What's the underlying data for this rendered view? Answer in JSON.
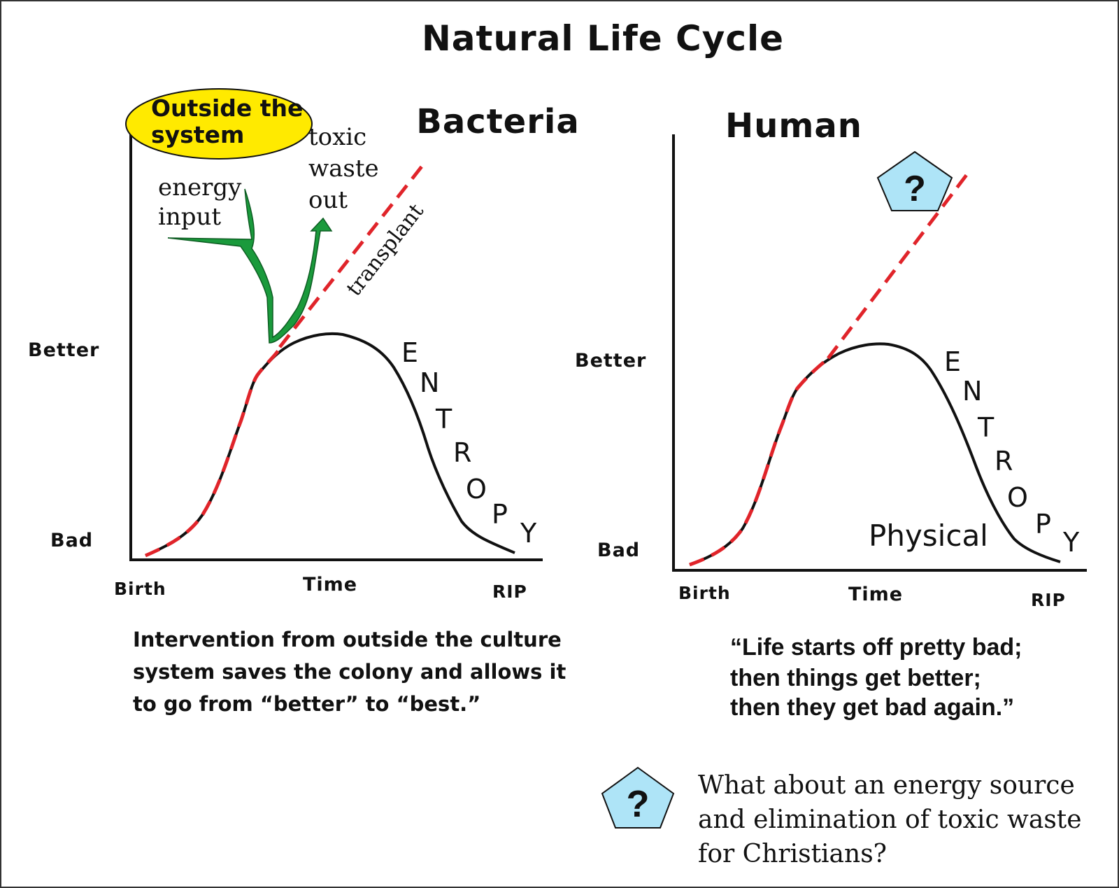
{
  "main_title": "Natural Life Cycle",
  "bacteria": {
    "title": "Bacteria",
    "y_better": "Better",
    "y_bad": "Bad",
    "x_birth": "Birth",
    "x_time": "Time",
    "x_rip": "RIP",
    "callout_line1": "Outside the",
    "callout_line2": "system",
    "energy_line1": "energy",
    "energy_line2": "input",
    "toxic_line1": "toxic",
    "toxic_line2": "waste",
    "toxic_line3": "out",
    "transplant": "transplant",
    "entropy_letters": [
      "E",
      "N",
      "T",
      "R",
      "O",
      "P",
      "Y"
    ],
    "caption_line1": "Intervention from outside the culture",
    "caption_line2": "system saves the colony and allows it",
    "caption_line3": "to go from “better” to “best.”"
  },
  "human": {
    "title": "Human",
    "y_better": "Better",
    "y_bad": "Bad",
    "x_birth": "Birth",
    "x_time": "Time",
    "x_rip": "RIP",
    "question_mark": "?",
    "physical": "Physical",
    "entropy_letters": [
      "E",
      "N",
      "T",
      "R",
      "O",
      "P",
      "Y"
    ],
    "quote_line1": "“Life starts off pretty bad;",
    "quote_line2": "then things get better;",
    "quote_line3": "then they get bad again.”"
  },
  "footer": {
    "question_mark": "?",
    "line1": "What about an energy source",
    "line2": "and elimination of toxic waste",
    "line3": "for Christians?"
  },
  "colors": {
    "curve": "#111111",
    "dashed": "#e0242a",
    "arrow_green": "#1a9a3c",
    "callout_yellow": "#ffea00",
    "pentagon_blue": "#aee4f7"
  }
}
